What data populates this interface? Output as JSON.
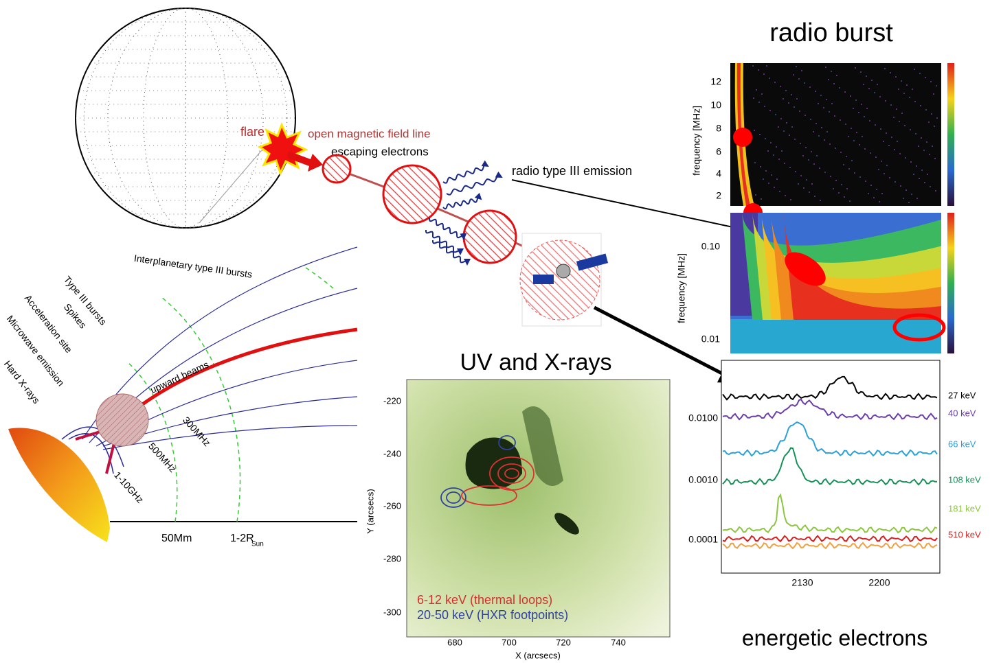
{
  "radio_burst": {
    "title": "radio burst",
    "upper_axis": {
      "label": "frequency [MHz]",
      "ticks": [
        "12",
        "10",
        "8",
        "6",
        "4",
        "2"
      ]
    },
    "lower_axis": {
      "label": "frequency [MHz]",
      "ticks": [
        "0.10",
        "0.01"
      ]
    }
  },
  "flare_schematic": {
    "flare": "flare",
    "field_line": "open magnetic field line",
    "electrons": "escaping electrons",
    "emission": "radio type III emission"
  },
  "uv_xrays": {
    "title": "UV and X-rays",
    "y_label": "Y (arcsecs)",
    "y_ticks": [
      "-220",
      "-240",
      "-260",
      "-280",
      "-300"
    ],
    "x_label": "X (arcsecs)",
    "x_ticks": [
      "680",
      "700",
      "720",
      "740"
    ],
    "legend": [
      "6-12 keV (thermal loops)",
      "20-50 keV (HXR footpoints)"
    ]
  },
  "energetic_electrons": {
    "title": "energetic electrons",
    "y_ticks": [
      "0.0100",
      "0.0010",
      "0.0001"
    ],
    "x_ticks": [
      "2130",
      "2200"
    ],
    "energies": [
      "27 keV",
      "40 keV",
      "66 keV",
      "108 keV",
      "181 keV",
      "510 keV"
    ]
  },
  "emission_sketch": {
    "labels": [
      "Interplanetary type III bursts",
      "Type III bursts",
      "Spikes",
      "Acceleration site",
      "Microwave emission",
      "Hard X-rays",
      "upward beams"
    ],
    "frequencies": [
      "300MHz",
      "500MHz",
      "1-10GHz"
    ],
    "distances": [
      "50Mm"
    ],
    "radius": {
      "text": "1-2R",
      "subscript": "Sun"
    }
  }
}
